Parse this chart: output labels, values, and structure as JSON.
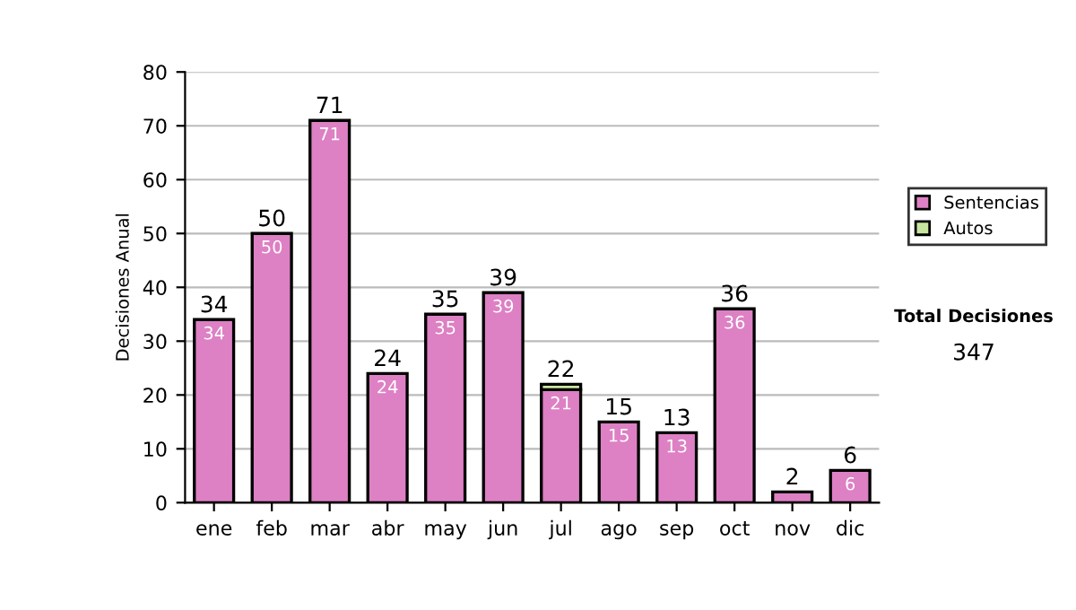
{
  "chart_data": {
    "type": "bar",
    "stacked": true,
    "ylabel": "Decisiones Anual",
    "categories": [
      "ene",
      "feb",
      "mar",
      "abr",
      "may",
      "jun",
      "jul",
      "ago",
      "sep",
      "oct",
      "nov",
      "dic"
    ],
    "series": [
      {
        "name": "Sentencias",
        "color": "#dd80c4",
        "values": [
          34,
          50,
          71,
          24,
          35,
          39,
          21,
          15,
          13,
          36,
          2,
          6
        ],
        "value_labels": [
          "34",
          "50",
          "71",
          "24",
          "35",
          "39",
          "21",
          "15",
          "13",
          "36",
          null,
          "6"
        ]
      },
      {
        "name": "Autos",
        "color": "#c8e6a0",
        "values": [
          0,
          0,
          0,
          0,
          0,
          0,
          1,
          0,
          0,
          0,
          0,
          0
        ]
      }
    ],
    "totals": [
      "34",
      "50",
      "71",
      "24",
      "35",
      "39",
      "22",
      "15",
      "13",
      "36",
      "2",
      "6"
    ],
    "ylim": [
      0,
      80
    ],
    "yticks": [
      0,
      10,
      20,
      30,
      40,
      50,
      60,
      70,
      80
    ],
    "grid": "y",
    "legend": "right",
    "annotations": [
      "Total Decisiones",
      "347"
    ]
  }
}
